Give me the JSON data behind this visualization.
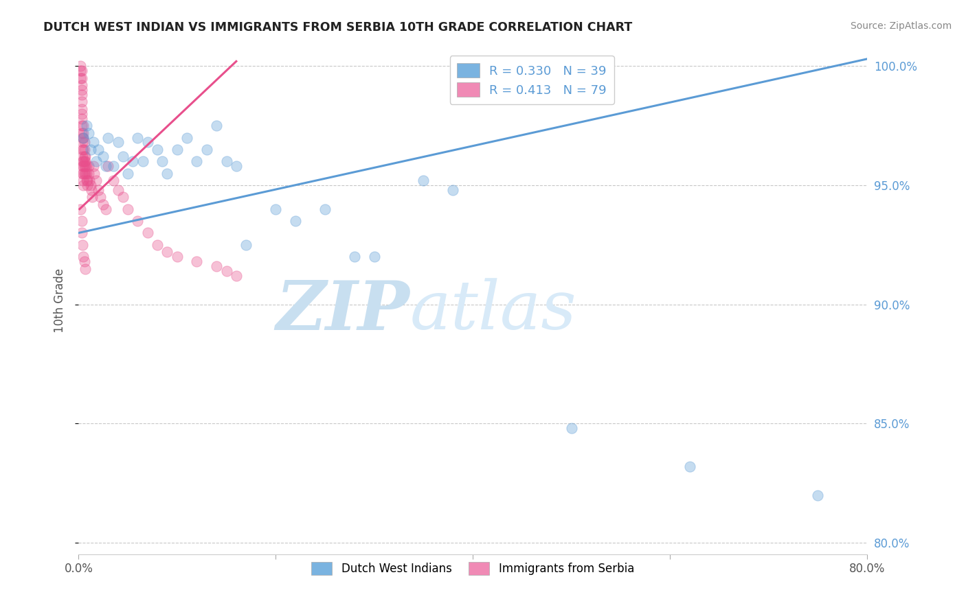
{
  "title": "DUTCH WEST INDIAN VS IMMIGRANTS FROM SERBIA 10TH GRADE CORRELATION CHART",
  "source": "Source: ZipAtlas.com",
  "ylabel": "10th Grade",
  "xlim": [
    0.0,
    0.8
  ],
  "ylim": [
    0.795,
    1.008
  ],
  "yticks": [
    0.8,
    0.85,
    0.9,
    0.95,
    1.0
  ],
  "yticklabels": [
    "80.0%",
    "85.0%",
    "90.0%",
    "95.0%",
    "100.0%"
  ],
  "watermark_zip": "ZIP",
  "watermark_atlas": "atlas",
  "legend_blue": "R = 0.330   N = 39",
  "legend_pink": "R = 0.413   N = 79",
  "legend_blue_bottom": "Dutch West Indians",
  "legend_pink_bottom": "Immigrants from Serbia",
  "blue_scatter_x": [
    0.005,
    0.008,
    0.01,
    0.012,
    0.015,
    0.018,
    0.02,
    0.025,
    0.028,
    0.03,
    0.035,
    0.04,
    0.045,
    0.05,
    0.055,
    0.06,
    0.065,
    0.07,
    0.08,
    0.085,
    0.09,
    0.1,
    0.11,
    0.12,
    0.13,
    0.14,
    0.15,
    0.16,
    0.17,
    0.2,
    0.22,
    0.25,
    0.28,
    0.3,
    0.35,
    0.38,
    0.5,
    0.62,
    0.75
  ],
  "blue_scatter_y": [
    0.97,
    0.975,
    0.972,
    0.965,
    0.968,
    0.96,
    0.965,
    0.962,
    0.958,
    0.97,
    0.958,
    0.968,
    0.962,
    0.955,
    0.96,
    0.97,
    0.96,
    0.968,
    0.965,
    0.96,
    0.955,
    0.965,
    0.97,
    0.96,
    0.965,
    0.975,
    0.96,
    0.958,
    0.925,
    0.94,
    0.935,
    0.94,
    0.92,
    0.92,
    0.952,
    0.948,
    0.848,
    0.832,
    0.82
  ],
  "pink_scatter_x": [
    0.002,
    0.002,
    0.002,
    0.003,
    0.003,
    0.003,
    0.003,
    0.003,
    0.003,
    0.003,
    0.003,
    0.003,
    0.003,
    0.003,
    0.004,
    0.004,
    0.004,
    0.004,
    0.004,
    0.004,
    0.004,
    0.005,
    0.005,
    0.005,
    0.005,
    0.005,
    0.005,
    0.005,
    0.005,
    0.005,
    0.006,
    0.006,
    0.006,
    0.006,
    0.006,
    0.006,
    0.007,
    0.007,
    0.007,
    0.007,
    0.008,
    0.008,
    0.008,
    0.009,
    0.009,
    0.01,
    0.01,
    0.011,
    0.012,
    0.013,
    0.014,
    0.015,
    0.016,
    0.018,
    0.02,
    0.022,
    0.025,
    0.028,
    0.03,
    0.035,
    0.04,
    0.045,
    0.05,
    0.06,
    0.07,
    0.08,
    0.09,
    0.1,
    0.12,
    0.14,
    0.15,
    0.16,
    0.002,
    0.003,
    0.003,
    0.004,
    0.005,
    0.006,
    0.007
  ],
  "pink_scatter_y": [
    1.0,
    0.998,
    0.995,
    0.998,
    0.995,
    0.992,
    0.99,
    0.988,
    0.985,
    0.982,
    0.98,
    0.978,
    0.975,
    0.972,
    0.97,
    0.968,
    0.965,
    0.962,
    0.96,
    0.958,
    0.955,
    0.975,
    0.972,
    0.97,
    0.965,
    0.96,
    0.958,
    0.955,
    0.952,
    0.95,
    0.968,
    0.965,
    0.962,
    0.96,
    0.958,
    0.955,
    0.962,
    0.96,
    0.958,
    0.955,
    0.958,
    0.955,
    0.952,
    0.952,
    0.95,
    0.958,
    0.955,
    0.952,
    0.95,
    0.948,
    0.945,
    0.958,
    0.955,
    0.952,
    0.948,
    0.945,
    0.942,
    0.94,
    0.958,
    0.952,
    0.948,
    0.945,
    0.94,
    0.935,
    0.93,
    0.925,
    0.922,
    0.92,
    0.918,
    0.916,
    0.914,
    0.912,
    0.94,
    0.935,
    0.93,
    0.925,
    0.92,
    0.918,
    0.915
  ],
  "blue_line_x": [
    0.0,
    0.8
  ],
  "blue_line_y": [
    0.93,
    1.003
  ],
  "pink_line_x": [
    0.001,
    0.16
  ],
  "pink_line_y": [
    0.94,
    1.002
  ],
  "blue_color": "#5b9bd5",
  "pink_color": "#e84f8c",
  "blue_color_legend": "#7ab3e0",
  "pink_color_legend": "#f08ab5",
  "grid_color": "#c8c8c8",
  "background_color": "#ffffff",
  "title_color": "#222222",
  "axis_label_color": "#555555",
  "right_axis_color": "#5b9bd5",
  "source_color": "#888888",
  "watermark_color_zip": "#c8dff0",
  "watermark_color_atlas": "#d8eaf8"
}
